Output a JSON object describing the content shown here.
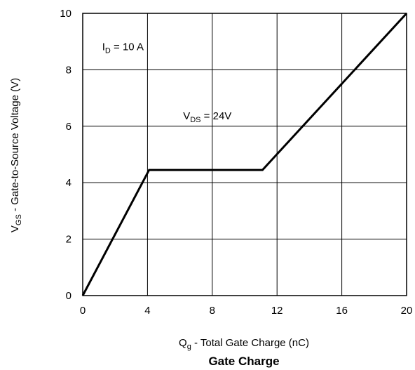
{
  "chart_data": {
    "type": "line",
    "title": "Gate Charge",
    "xlabel": {
      "main": "Q",
      "sub": "g",
      "rest": " - Total Gate Charge (nC)"
    },
    "ylabel": {
      "main": "V",
      "sub": "GS",
      "rest": " - Gate-to-Source Voltage (V)"
    },
    "xlim": [
      0,
      20
    ],
    "ylim": [
      0,
      10
    ],
    "x_ticks": [
      "0",
      "4",
      "8",
      "12",
      "16",
      "20"
    ],
    "y_ticks": [
      "0",
      "2",
      "4",
      "6",
      "8",
      "10"
    ],
    "grid": true,
    "series": [
      {
        "x": [
          0,
          4.1,
          11.1,
          20
        ],
        "y": [
          0,
          4.45,
          4.45,
          10
        ]
      }
    ],
    "annotations": [
      {
        "main": "I",
        "sub": "D",
        "rest": " = 10 A",
        "x": 1.2,
        "y": 8.7
      },
      {
        "main": "V",
        "sub": "DS",
        "rest": " =  24V",
        "x": 6.2,
        "y": 6.25
      }
    ],
    "line_color": "#000000",
    "grid_color": "#000000"
  }
}
